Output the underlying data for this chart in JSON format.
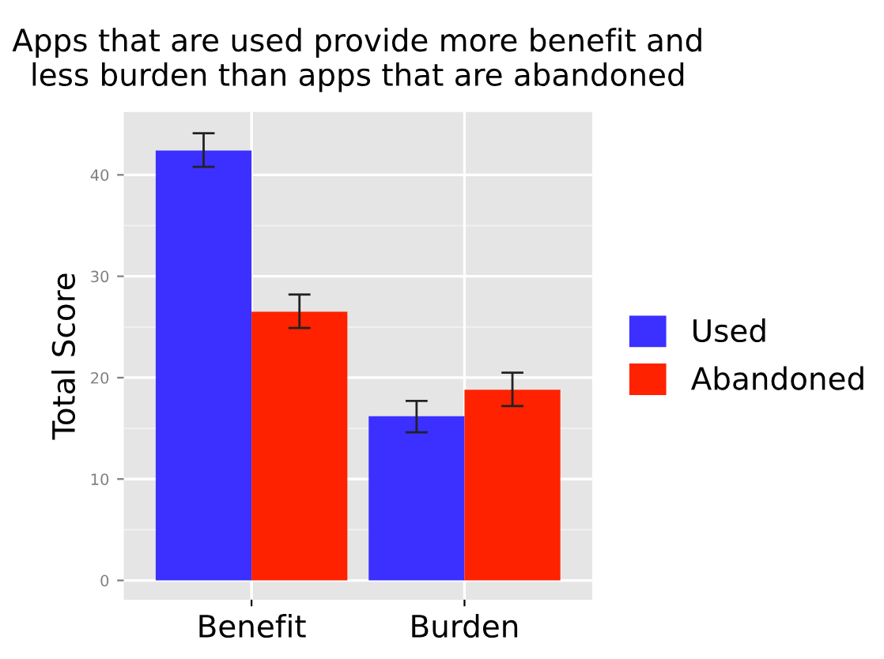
{
  "chart_data": {
    "type": "bar",
    "title": "Apps that are used provide more benefit and\nless burden than apps that are abandoned",
    "ylabel": "Total Score",
    "categories": [
      "Benefit",
      "Burden"
    ],
    "series": [
      {
        "name": "Used",
        "color": "#3b30ff",
        "values": [
          42.4,
          16.2
        ],
        "errors": [
          [
            40.8,
            44.1
          ],
          [
            14.6,
            17.7
          ]
        ]
      },
      {
        "name": "Abandoned",
        "color": "#ff2200",
        "values": [
          26.5,
          18.8
        ],
        "errors": [
          [
            24.9,
            28.2
          ],
          [
            17.2,
            20.5
          ]
        ]
      }
    ],
    "ylim": [
      -1.9,
      46.2
    ],
    "yticks": [
      0,
      10,
      20,
      30,
      40
    ],
    "grid": true,
    "legend": "right"
  }
}
